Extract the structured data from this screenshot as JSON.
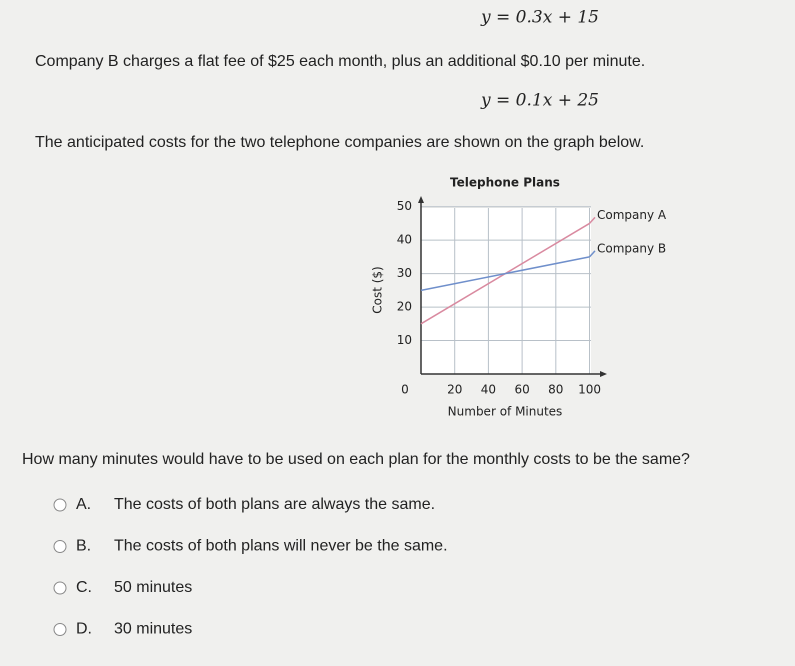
{
  "equation_a": "y = 0.3x + 15",
  "paragraph_b": "Company B charges a flat fee of $25 each month, plus an additional $0.10 per minute.",
  "equation_b": "y = 0.1x + 25",
  "paragraph_graph": "The anticipated costs for the two telephone companies are shown on the graph below.",
  "chart_data": {
    "type": "line",
    "title": "Telephone Plans",
    "x_label": "Number of Minutes",
    "y_label": "Cost ($)",
    "x": [
      0,
      100
    ],
    "series": [
      {
        "name": "Company A",
        "color": "#d98aa0",
        "values": [
          15,
          45
        ]
      },
      {
        "name": "Company B",
        "color": "#6f8fcb",
        "values": [
          25,
          35
        ]
      }
    ],
    "xlim": [
      0,
      108
    ],
    "ylim": [
      0,
      52
    ],
    "xticks": [
      0,
      20,
      40,
      60,
      80,
      100
    ],
    "yticks": [
      10,
      20,
      30,
      40,
      50
    ],
    "grid": true
  },
  "question": "How many minutes would have to be used on each plan for the monthly costs to be the same?",
  "options": [
    {
      "letter": "A.",
      "text": "The costs of both plans are always the same."
    },
    {
      "letter": "B.",
      "text": "The costs of both plans will never be the same."
    },
    {
      "letter": "C.",
      "text": "50 minutes"
    },
    {
      "letter": "D.",
      "text": "30 minutes"
    }
  ]
}
